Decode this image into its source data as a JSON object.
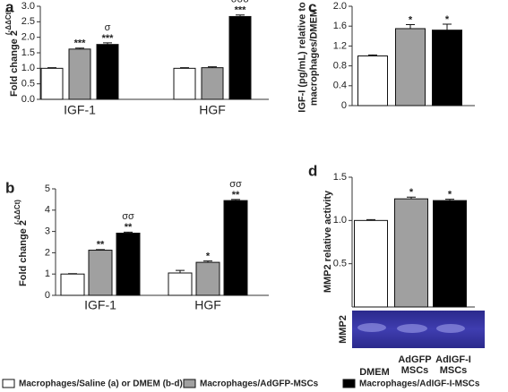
{
  "chart_data": [
    {
      "type": "bar",
      "panel": "a",
      "ylabel": "Fold change 2",
      "ylabel_sup": "(-ΔΔCt)",
      "categories": [
        "IGF-1",
        "HGF"
      ],
      "series": [
        {
          "color": "#ffffff",
          "values": [
            1.0,
            1.0
          ],
          "errors": [
            0.02,
            0.02
          ],
          "stars": [
            null,
            null
          ],
          "sigmas": [
            null,
            null
          ]
        },
        {
          "color": "#a0a0a0",
          "values": [
            1.62,
            1.02
          ],
          "errors": [
            0.03,
            0.03
          ],
          "stars": [
            "***",
            null
          ],
          "sigmas": [
            null,
            null
          ]
        },
        {
          "color": "#000000",
          "values": [
            1.77,
            2.67
          ],
          "errors": [
            0.05,
            0.05
          ],
          "stars": [
            "***",
            "***"
          ],
          "sigmas": [
            "σ",
            "σσσ"
          ]
        }
      ],
      "ylim": [
        0,
        3
      ],
      "yticks": [
        {
          "value": 0,
          "label": "0.0"
        },
        0.5,
        {
          "value": 1,
          "label": "1.0"
        },
        1.5,
        {
          "value": 2,
          "label": "2.0"
        },
        2.5,
        {
          "value": 3,
          "label": "3.0"
        }
      ]
    },
    {
      "type": "bar",
      "panel": "b",
      "ylabel": "Fold change 2",
      "ylabel_sup": "(-ΔΔCt)",
      "categories": [
        "IGF-1",
        "HGF"
      ],
      "series": [
        {
          "color": "#ffffff",
          "values": [
            1.0,
            1.05
          ],
          "errors": [
            0.02,
            0.12
          ],
          "stars": [
            null,
            null
          ],
          "sigmas": [
            null,
            null
          ]
        },
        {
          "color": "#a0a0a0",
          "values": [
            2.12,
            1.55
          ],
          "errors": [
            0.03,
            0.06
          ],
          "stars": [
            "**",
            "*"
          ],
          "sigmas": [
            null,
            null
          ]
        },
        {
          "color": "#000000",
          "values": [
            2.92,
            4.45
          ],
          "errors": [
            0.05,
            0.05
          ],
          "stars": [
            "**",
            "**"
          ],
          "sigmas": [
            "σσ",
            "σσ"
          ]
        }
      ],
      "ylim": [
        0,
        5
      ],
      "yticks": [
        0,
        1,
        2,
        3,
        4,
        5
      ]
    },
    {
      "type": "bar",
      "panel": "c",
      "ylabel": [
        "IGF-I (pg/mL) relative to",
        "macrophages/DMEM"
      ],
      "categories": [
        null,
        null,
        null
      ],
      "values": [
        1.0,
        1.55,
        1.52
      ],
      "errors": [
        0.02,
        0.08,
        0.12
      ],
      "colors": [
        "#ffffff",
        "#a0a0a0",
        "#000000"
      ],
      "stars": [
        null,
        "*",
        "*"
      ],
      "ylim": [
        0,
        2
      ],
      "yticks": [
        0,
        0.4,
        0.8,
        1.2,
        1.6,
        {
          "value": 2,
          "label": "2.0"
        }
      ]
    },
    {
      "type": "bar",
      "panel": "d",
      "ylabel": [
        "MMP2 relative activity"
      ],
      "gel_label": "MMP2",
      "categories": [
        [
          "DMEM"
        ],
        [
          "AdGFP",
          "MSCs"
        ],
        [
          "AdIGF-I",
          "MSCs"
        ]
      ],
      "values": [
        1.0,
        1.25,
        1.23
      ],
      "errors": [
        0.01,
        0.02,
        0.015
      ],
      "colors": [
        "#ffffff",
        "#a0a0a0",
        "#000000"
      ],
      "stars": [
        null,
        "*",
        "*"
      ],
      "ylim": [
        0,
        1.5
      ],
      "yticks": [
        0.5,
        {
          "value": 1,
          "label": "1.0"
        },
        1.5
      ]
    }
  ],
  "legend": [
    {
      "label": "Macrophages/Saline (a) or DMEM (b-d)",
      "color": "#ffffff"
    },
    {
      "label": "Macrophages/AdGFP-MSCs",
      "color": "#a0a0a0"
    },
    {
      "label": "Macrophages/AdIGF-I-MSCs",
      "color": "#000000"
    }
  ]
}
